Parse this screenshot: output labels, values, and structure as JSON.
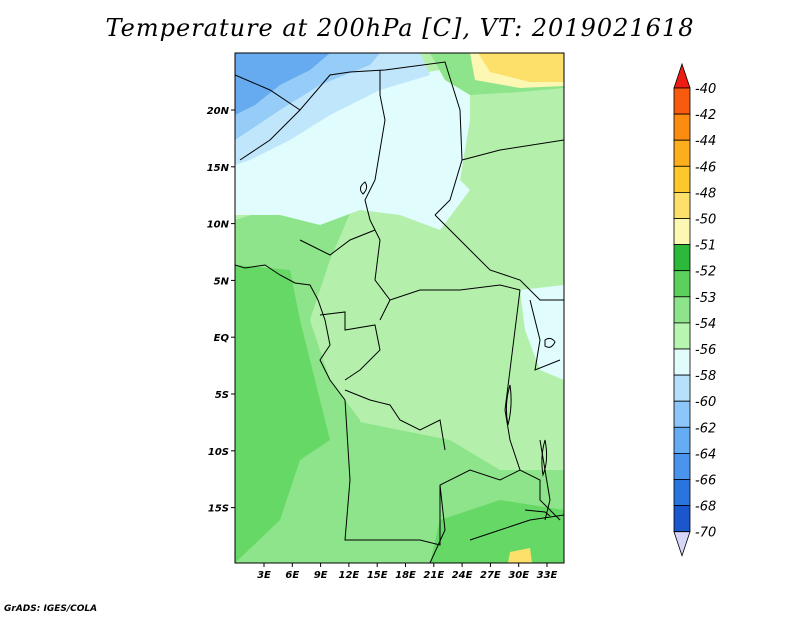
{
  "title": "Temperature at 200hPa [C], VT: 2019021618",
  "footer": "GrADS: IGES/COLA",
  "map": {
    "lon_labels": [
      "3E",
      "6E",
      "9E",
      "12E",
      "15E",
      "18E",
      "21E",
      "24E",
      "27E",
      "30E",
      "33E"
    ],
    "lat_labels": [
      "20N",
      "15N",
      "10N",
      "5N",
      "EQ",
      "5S",
      "10S",
      "15S"
    ]
  },
  "colorbar": {
    "labels": [
      "-40",
      "-42",
      "-44",
      "-46",
      "-48",
      "-50",
      "-51",
      "-52",
      "-53",
      "-54",
      "-56",
      "-58",
      "-60",
      "-62",
      "-64",
      "-66",
      "-68",
      "-70"
    ],
    "colors": [
      "#ee1c14",
      "#f85a0e",
      "#fc8c10",
      "#fcae1c",
      "#fcc82c",
      "#fce06a",
      "#fcf8b4",
      "#2cb838",
      "#5cd05c",
      "#8ee48a",
      "#b6f6b0",
      "#e2fcfc",
      "#b6e0fc",
      "#8cc6fa",
      "#66acf4",
      "#4a94ee",
      "#2a74e0",
      "#1a56cc",
      "#0a3ca8",
      "#08207a",
      "#08106a",
      "#d6d6f8"
    ]
  },
  "fields": {
    "fill_colors": [
      "#66aaf0",
      "#96ccf8",
      "#c0e6fc",
      "#e0fcfc",
      "#b4f0ac",
      "#8ee48a",
      "#66d866",
      "#fce06a",
      "#fcf8b4"
    ]
  }
}
